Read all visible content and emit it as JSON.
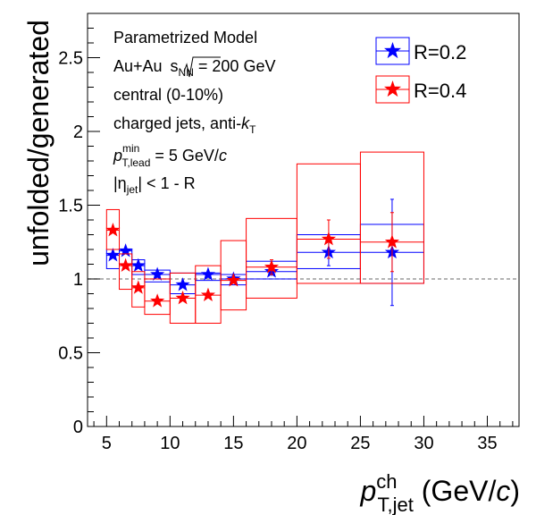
{
  "chart_data": {
    "type": "scatter",
    "xlabel": {
      "main": "p",
      "sup": "ch",
      "sub": "T,jet",
      "unit_open": " (GeV/",
      "unit_var": "c",
      "unit_close": ")"
    },
    "ylabel": "unfolded/generated",
    "xlim": [
      3.5,
      37.5
    ],
    "ylim": [
      0,
      2.8
    ],
    "x_ticks": [
      5,
      10,
      15,
      20,
      25,
      30,
      35
    ],
    "y_ticks": [
      0,
      0.5,
      1,
      1.5,
      2,
      2.5
    ],
    "y_tick_labels": [
      "0",
      "0.5",
      "1",
      "1.5",
      "2",
      "2.5"
    ],
    "reference_line": 1,
    "annotations": {
      "line1": "Parametrized Model",
      "line2_a": "Au+Au ",
      "line2_s": "s",
      "line2_nn": "NN",
      "line2_b": " = 200 GeV",
      "line3": "central (0-10%)",
      "line4_a": "charged jets, anti-",
      "line4_k": "k",
      "line4_t": "T",
      "line5_p": "p",
      "line5_sup": "min",
      "line5_sub": "T,lead",
      "line5_a": " = 5 GeV/",
      "line5_c": "c",
      "line6_a": "|η",
      "line6_sub": "jet",
      "line6_b": "| < 1 - R"
    },
    "legend": {
      "position": "top-right"
    },
    "series": [
      {
        "name": "R=0.2",
        "color": "#0000ff",
        "points": [
          {
            "x": 5.5,
            "y": 1.16,
            "xlo": 5,
            "xhi": 6,
            "syslo": 1.07,
            "syshi": 1.2,
            "stat": 0.02
          },
          {
            "x": 6.5,
            "y": 1.19,
            "xlo": 6,
            "xhi": 7,
            "syslo": 1.1,
            "syshi": 1.2,
            "stat": 0.02
          },
          {
            "x": 7.5,
            "y": 1.09,
            "xlo": 7,
            "xhi": 8,
            "syslo": 1.03,
            "syshi": 1.13,
            "stat": 0.02
          },
          {
            "x": 9,
            "y": 1.03,
            "xlo": 8,
            "xhi": 10,
            "syslo": 0.98,
            "syshi": 1.06,
            "stat": 0.02
          },
          {
            "x": 11,
            "y": 0.96,
            "xlo": 10,
            "xhi": 12,
            "syslo": 0.9,
            "syshi": 1.04,
            "stat": 0.02
          },
          {
            "x": 13,
            "y": 1.03,
            "xlo": 12,
            "xhi": 14,
            "syslo": 0.99,
            "syshi": 1.04,
            "stat": 0.02
          },
          {
            "x": 15,
            "y": 1.0,
            "xlo": 14,
            "xhi": 16,
            "syslo": 0.96,
            "syshi": 1.03,
            "stat": 0.02
          },
          {
            "x": 18,
            "y": 1.05,
            "xlo": 16,
            "xhi": 20,
            "syslo": 1.0,
            "syshi": 1.12,
            "stat": 0.03
          },
          {
            "x": 22.5,
            "y": 1.18,
            "xlo": 20,
            "xhi": 25,
            "syslo": 1.07,
            "syshi": 1.3,
            "stat": 0.09
          },
          {
            "x": 27.5,
            "y": 1.18,
            "xlo": 25,
            "xhi": 30,
            "syslo": 0.97,
            "syshi": 1.37,
            "stat": 0.36
          }
        ]
      },
      {
        "name": "R=0.4",
        "color": "#ff0000",
        "points": [
          {
            "x": 5.5,
            "y": 1.33,
            "xlo": 5,
            "xhi": 6,
            "syslo": 1.2,
            "syshi": 1.47,
            "stat": 0.02
          },
          {
            "x": 6.5,
            "y": 1.09,
            "xlo": 6,
            "xhi": 7,
            "syslo": 0.93,
            "syshi": 1.17,
            "stat": 0.02
          },
          {
            "x": 7.5,
            "y": 0.94,
            "xlo": 7,
            "xhi": 8,
            "syslo": 0.81,
            "syshi": 1.05,
            "stat": 0.02
          },
          {
            "x": 9,
            "y": 0.85,
            "xlo": 8,
            "xhi": 10,
            "syslo": 0.76,
            "syshi": 1.0,
            "stat": 0.02
          },
          {
            "x": 11,
            "y": 0.87,
            "xlo": 10,
            "xhi": 12,
            "syslo": 0.7,
            "syshi": 1.04,
            "stat": 0.02
          },
          {
            "x": 13,
            "y": 0.89,
            "xlo": 12,
            "xhi": 14,
            "syslo": 0.7,
            "syshi": 1.09,
            "stat": 0.02
          },
          {
            "x": 15,
            "y": 0.99,
            "xlo": 14,
            "xhi": 16,
            "syslo": 0.79,
            "syshi": 1.26,
            "stat": 0.02
          },
          {
            "x": 18,
            "y": 1.08,
            "xlo": 16,
            "xhi": 20,
            "syslo": 0.87,
            "syshi": 1.41,
            "stat": 0.05
          },
          {
            "x": 22.5,
            "y": 1.27,
            "xlo": 20,
            "xhi": 25,
            "syslo": 0.97,
            "syshi": 1.78,
            "stat": 0.13
          },
          {
            "x": 27.5,
            "y": 1.25,
            "xlo": 25,
            "xhi": 30,
            "syslo": 0.97,
            "syshi": 1.86,
            "stat": 0.2
          }
        ]
      }
    ]
  }
}
